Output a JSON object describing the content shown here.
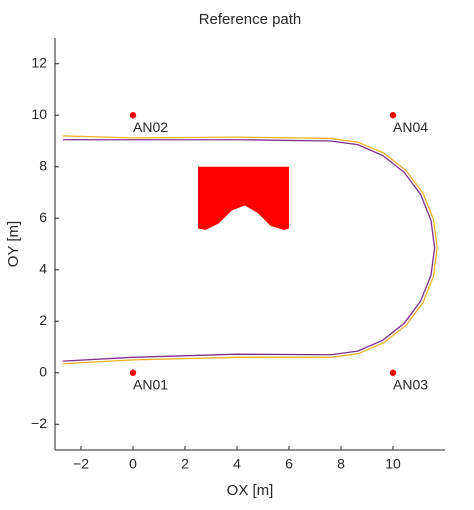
{
  "chart_data": {
    "type": "line",
    "title": "Reference path",
    "xlabel": "OX [m]",
    "ylabel": "OY [m]",
    "xlim": [
      -3,
      12
    ],
    "ylim": [
      -3,
      13
    ],
    "xticks": [
      {
        "value": -2,
        "label": "−2"
      },
      0,
      2,
      4,
      6,
      8,
      10
    ],
    "yticks": [
      {
        "value": -2,
        "label": "−2"
      },
      0,
      2,
      4,
      6,
      8,
      10,
      12
    ],
    "grid": false,
    "series": [
      {
        "color": "#7e2f8e",
        "x": [
          -2.7,
          0,
          4,
          7.6,
          8.64,
          9.6,
          10.43,
          11.06,
          11.46,
          11.6,
          11.46,
          11.06,
          10.43,
          9.6,
          8.64,
          7.6,
          4,
          0,
          -2.7
        ],
        "y": [
          9.05,
          9.05,
          9.05,
          9.0,
          8.86,
          8.44,
          7.78,
          6.93,
          5.92,
          4.85,
          3.78,
          2.78,
          1.92,
          1.26,
          0.84,
          0.7,
          0.72,
          0.6,
          0.45
        ]
      },
      {
        "color": "#edb120",
        "x": [
          -2.7,
          0,
          4,
          7.6,
          8.66,
          9.65,
          10.5,
          11.15,
          11.56,
          11.7,
          11.56,
          11.15,
          10.5,
          9.65,
          8.66,
          7.6,
          4,
          0,
          -2.7
        ],
        "y": [
          9.2,
          9.12,
          9.15,
          9.1,
          8.95,
          8.53,
          7.86,
          6.98,
          5.95,
          4.85,
          3.75,
          2.72,
          1.84,
          1.17,
          0.74,
          0.6,
          0.6,
          0.5,
          0.35
        ]
      }
    ],
    "obstacle": {
      "color": "#ff0000",
      "x": [
        2.5,
        6.0,
        6.0,
        5.8,
        5.3,
        4.8,
        4.3,
        3.8,
        3.3,
        2.8,
        2.5
      ],
      "y": [
        8.0,
        8.0,
        5.6,
        5.55,
        5.7,
        6.2,
        6.5,
        6.3,
        5.8,
        5.55,
        5.6
      ]
    },
    "points": {
      "color": "#ff0000",
      "items": [
        {
          "label": "AN01",
          "x": 0,
          "y": 0
        },
        {
          "label": "AN02",
          "x": 0,
          "y": 10
        },
        {
          "label": "AN03",
          "x": 10,
          "y": 0
        },
        {
          "label": "AN04",
          "x": 10,
          "y": 10
        }
      ]
    }
  }
}
